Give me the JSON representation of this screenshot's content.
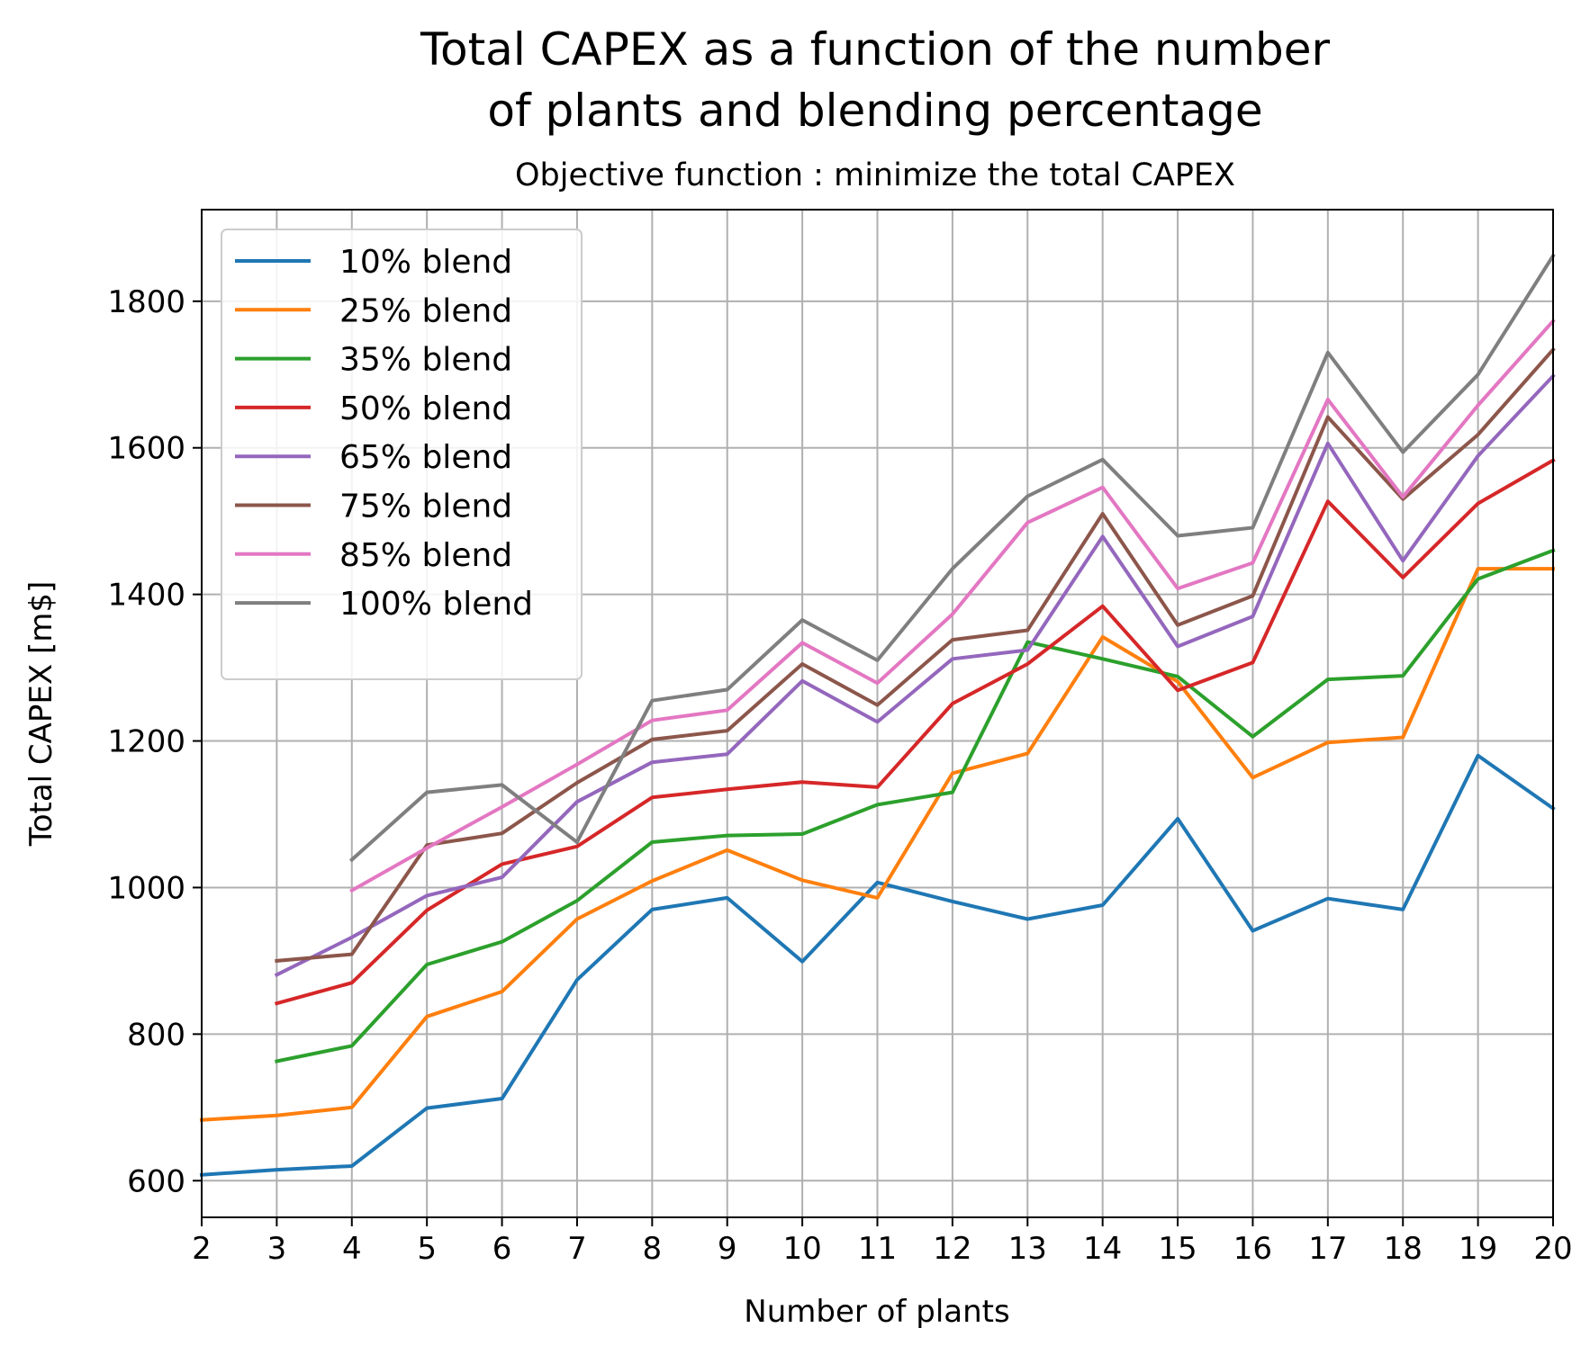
{
  "chart_data": {
    "type": "line",
    "title_lines": [
      "Total CAPEX as a function of the number",
      "of plants and blending percentage"
    ],
    "subtitle": "Objective function : minimize the total CAPEX",
    "xlabel": "Number of plants",
    "ylabel": "Total CAPEX [m$]",
    "x": [
      2,
      3,
      4,
      5,
      6,
      7,
      8,
      9,
      10,
      11,
      12,
      13,
      14,
      15,
      16,
      17,
      18,
      19,
      20
    ],
    "xlim": [
      2,
      20
    ],
    "ylim": [
      550,
      1925
    ],
    "xticks": [
      "2",
      "3",
      "4",
      "5",
      "6",
      "7",
      "8",
      "9",
      "10",
      "11",
      "12",
      "13",
      "14",
      "15",
      "16",
      "17",
      "18",
      "19",
      "20"
    ],
    "yticks": [
      600,
      800,
      1000,
      1200,
      1400,
      1600,
      1800
    ],
    "ytick_labels": [
      "600",
      "800",
      "1000",
      "1200",
      "1400",
      "1600",
      "1800"
    ],
    "grid": true,
    "legend_position": "top-left",
    "series": [
      {
        "name": "10% blend",
        "color": "#1f77b4",
        "values": [
          608,
          615,
          620,
          699,
          712,
          874,
          970,
          986,
          899,
          1007,
          981,
          957,
          976,
          1094,
          941,
          985,
          970,
          1180,
          1108
        ]
      },
      {
        "name": "25% blend",
        "color": "#ff7f0e",
        "values": [
          683,
          689,
          700,
          824,
          858,
          957,
          1009,
          1051,
          1010,
          986,
          1156,
          1183,
          1342,
          1281,
          1150,
          1198,
          1205,
          1435,
          1435
        ]
      },
      {
        "name": "35% blend",
        "color": "#2ca02c",
        "values": [
          null,
          763,
          784,
          895,
          926,
          982,
          1062,
          1071,
          1073,
          1113,
          1130,
          1335,
          1312,
          1288,
          1206,
          1284,
          1289,
          1421,
          1460
        ]
      },
      {
        "name": "50% blend",
        "color": "#d62728",
        "values": [
          null,
          842,
          870,
          969,
          1032,
          1056,
          1123,
          1134,
          1144,
          1137,
          1251,
          1305,
          1384,
          1269,
          1307,
          1527,
          1423,
          1524,
          1583
        ]
      },
      {
        "name": "65% blend",
        "color": "#9467bd",
        "values": [
          null,
          881,
          932,
          989,
          1014,
          1117,
          1171,
          1182,
          1282,
          1226,
          1312,
          1324,
          1479,
          1329,
          1370,
          1606,
          1446,
          1589,
          1698
        ]
      },
      {
        "name": "75% blend",
        "color": "#8c564b",
        "values": [
          null,
          900,
          909,
          1058,
          1074,
          1143,
          1202,
          1214,
          1305,
          1249,
          1338,
          1351,
          1510,
          1358,
          1398,
          1642,
          1530,
          1618,
          1734
        ]
      },
      {
        "name": "85% blend",
        "color": "#e377c2",
        "values": [
          null,
          null,
          996,
          1054,
          1110,
          1168,
          1228,
          1242,
          1334,
          1279,
          1373,
          1498,
          1546,
          1408,
          1443,
          1666,
          1533,
          1658,
          1773
        ]
      },
      {
        "name": "100% blend",
        "color": "#7f7f7f",
        "values": [
          null,
          null,
          1038,
          1130,
          1140,
          1062,
          1255,
          1270,
          1365,
          1310,
          1435,
          1534,
          1584,
          1480,
          1491,
          1730,
          1594,
          1700,
          1862
        ]
      }
    ]
  }
}
